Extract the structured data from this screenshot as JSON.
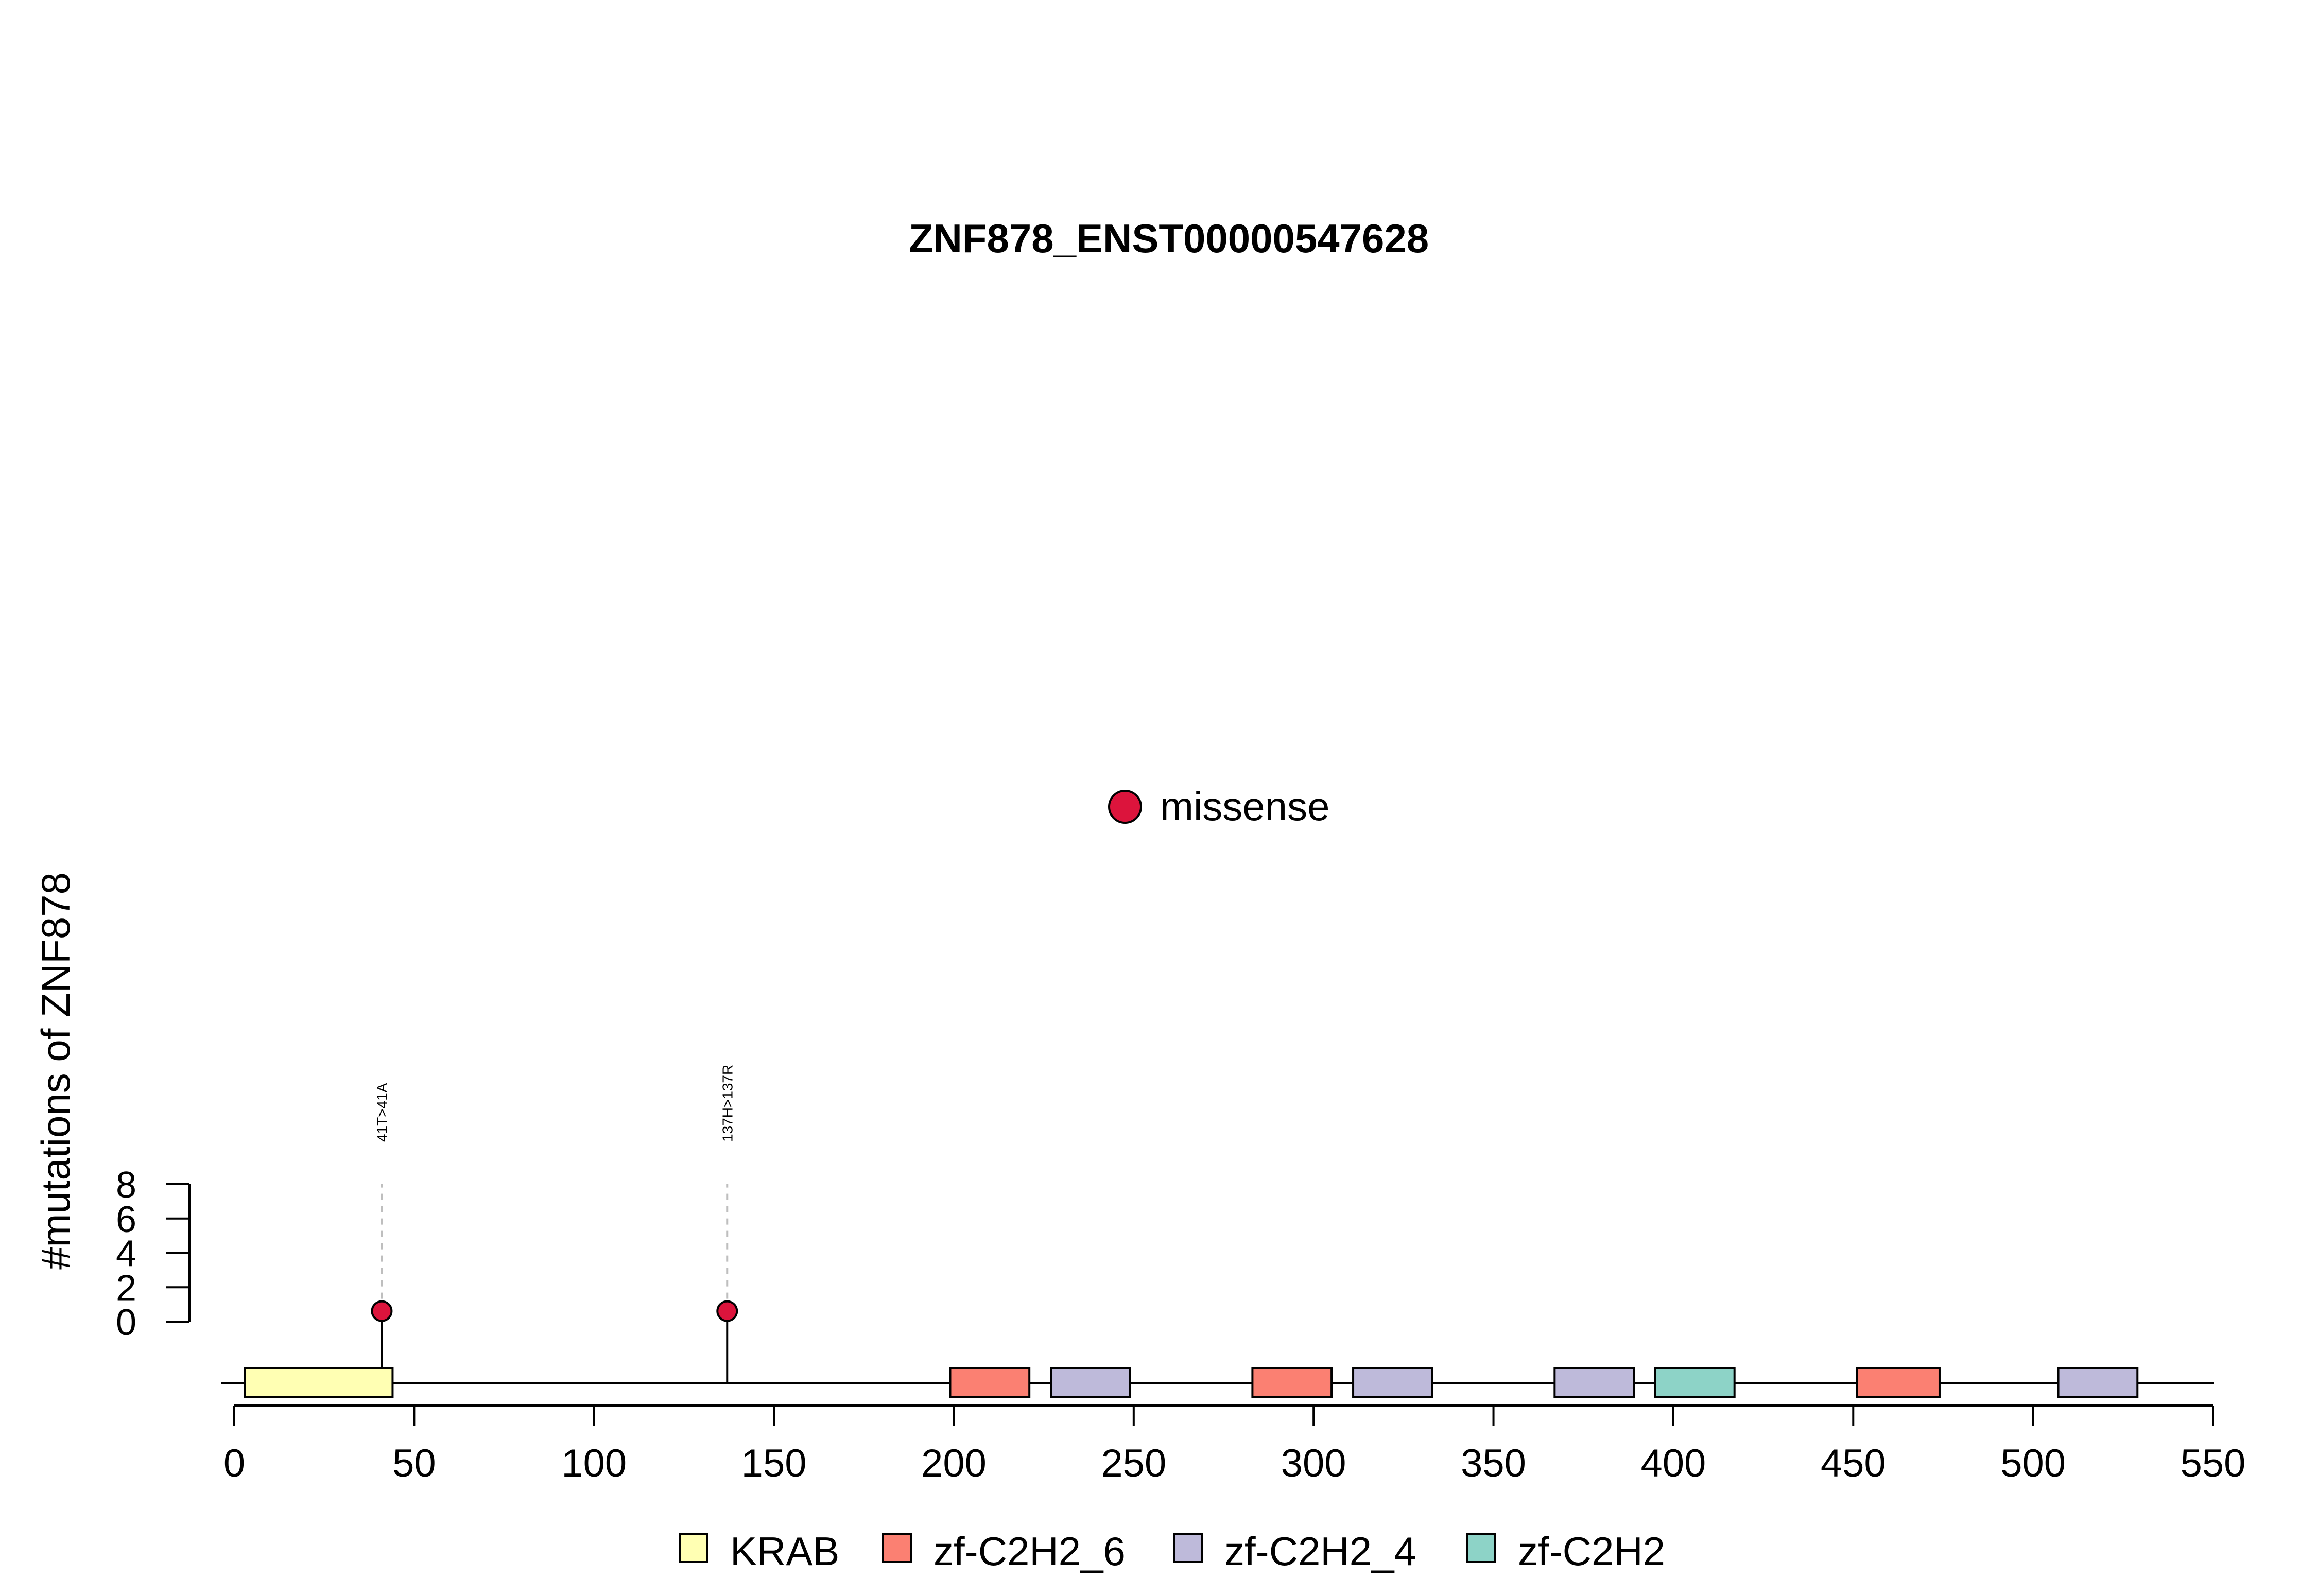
{
  "chart_data": {
    "type": "lollipop",
    "title": "ZNF878_ENST00000547628",
    "ylabel": "#mutations of ZNF878",
    "xlim": [
      0,
      550
    ],
    "x_ticks": [
      0,
      50,
      100,
      150,
      200,
      250,
      300,
      350,
      400,
      450,
      500,
      550
    ],
    "ylim": [
      0,
      8
    ],
    "y_ticks": [
      0,
      2,
      4,
      6,
      8
    ],
    "protein_length": 550,
    "mutations": [
      {
        "position": 41,
        "count": 1,
        "label": "41T>41A",
        "type": "missense"
      },
      {
        "position": 137,
        "count": 1,
        "label": "137H>137R",
        "type": "missense"
      }
    ],
    "domains": [
      {
        "name": "KRAB",
        "start": 3,
        "end": 44
      },
      {
        "name": "zf-C2H2_6",
        "start": 199,
        "end": 221
      },
      {
        "name": "zf-C2H2_4",
        "start": 227,
        "end": 249
      },
      {
        "name": "zf-C2H2_6",
        "start": 283,
        "end": 305
      },
      {
        "name": "zf-C2H2_4",
        "start": 311,
        "end": 333
      },
      {
        "name": "zf-C2H2_4",
        "start": 367,
        "end": 389
      },
      {
        "name": "zf-C2H2",
        "start": 395,
        "end": 417
      },
      {
        "name": "zf-C2H2_6",
        "start": 451,
        "end": 474
      },
      {
        "name": "zf-C2H2_4",
        "start": 507,
        "end": 529
      }
    ],
    "mutation_legend": [
      {
        "label": "missense",
        "color": "#DC143C"
      }
    ],
    "domain_legend": [
      {
        "label": "KRAB",
        "color": "#FFFFB3"
      },
      {
        "label": "zf-C2H2_6",
        "color": "#FB8072"
      },
      {
        "label": "zf-C2H2_4",
        "color": "#BEBADA"
      },
      {
        "label": "zf-C2H2",
        "color": "#8DD3C7"
      }
    ]
  }
}
